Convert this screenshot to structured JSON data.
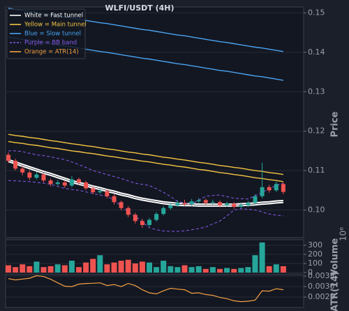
{
  "chart_data": {
    "type": "candlestick",
    "title": "WLFI/USDT (4H)",
    "ylabel": "Price",
    "grid": true,
    "legend": "upper left",
    "up_color": "#26a69a",
    "down_color": "#ef5350",
    "ylim": [
      0.093,
      0.1515
    ],
    "yticks": [
      {
        "value": 0.1,
        "label": "0.10"
      },
      0.11,
      0.12,
      0.13,
      0.14,
      0.15
    ],
    "open": [
      0.114,
      0.1125,
      0.1105,
      0.1095,
      0.1082,
      0.109,
      0.1075,
      0.1066,
      0.107,
      0.1062,
      0.1078,
      0.107,
      0.1055,
      0.1045,
      0.1048,
      0.1035,
      0.102,
      0.1005,
      0.0988,
      0.0972,
      0.0962,
      0.0975,
      0.099,
      0.1005,
      0.1012,
      0.1018,
      0.1015,
      0.1022,
      0.1025,
      0.1018,
      0.102,
      0.1012,
      0.1016,
      0.1008,
      0.1012,
      0.1018,
      0.1035,
      0.1058,
      0.105,
      0.1066
    ],
    "high": [
      0.1146,
      0.113,
      0.1112,
      0.11,
      0.1097,
      0.1094,
      0.108,
      0.1076,
      0.1074,
      0.1086,
      0.1082,
      0.1074,
      0.106,
      0.1054,
      0.1052,
      0.104,
      0.1024,
      0.101,
      0.0993,
      0.0978,
      0.098,
      0.0995,
      0.101,
      0.1018,
      0.1024,
      0.1026,
      0.1028,
      0.103,
      0.1029,
      0.1026,
      0.1024,
      0.1021,
      0.102,
      0.1017,
      0.1023,
      0.104,
      0.112,
      0.1064,
      0.1072,
      0.107
    ],
    "low": [
      0.1119,
      0.11,
      0.1088,
      0.1076,
      0.1078,
      0.107,
      0.106,
      0.1062,
      0.1056,
      0.1058,
      0.1064,
      0.105,
      0.104,
      0.1041,
      0.103,
      0.1014,
      0.0999,
      0.0982,
      0.0966,
      0.0955,
      0.0958,
      0.0971,
      0.0986,
      0.1001,
      0.1008,
      0.101,
      0.1011,
      0.1017,
      0.1013,
      0.1014,
      0.1007,
      0.1008,
      0.1003,
      0.1004,
      0.1008,
      0.1014,
      0.103,
      0.1044,
      0.1046,
      0.104
    ],
    "close": [
      0.1125,
      0.1105,
      0.1095,
      0.1082,
      0.109,
      0.1075,
      0.1066,
      0.107,
      0.1062,
      0.1078,
      0.107,
      0.1055,
      0.1045,
      0.1048,
      0.1035,
      0.102,
      0.1005,
      0.0988,
      0.0972,
      0.0962,
      0.0975,
      0.099,
      0.1005,
      0.1012,
      0.1018,
      0.1015,
      0.1022,
      0.1025,
      0.1018,
      0.102,
      0.1012,
      0.1016,
      0.1008,
      0.1012,
      0.1018,
      0.1035,
      0.1058,
      0.105,
      0.1066,
      0.1046
    ],
    "overlays": [
      {
        "name": "White = Fast tunnel",
        "color": "#ffffff",
        "width": 2,
        "dash": false,
        "lines": [
          [
            0.1128,
            0.1122,
            0.1116,
            0.111,
            0.1104,
            0.1098,
            0.1093,
            0.1087,
            0.1081,
            0.1075,
            0.107,
            0.1066,
            0.1061,
            0.1057,
            0.1052,
            0.1048,
            0.1043,
            0.1039,
            0.1034,
            0.103,
            0.1027,
            0.1024,
            0.1021,
            0.1019,
            0.1017,
            0.1016,
            0.1016,
            0.1015,
            0.1015,
            0.1015,
            0.1015,
            0.1015,
            0.1015,
            0.1016,
            0.1017,
            0.1018,
            0.102,
            0.1021,
            0.1023,
            0.1024
          ],
          [
            0.1123,
            0.1117,
            0.1111,
            0.1105,
            0.1099,
            0.1093,
            0.1088,
            0.1082,
            0.1076,
            0.107,
            0.1065,
            0.1061,
            0.1056,
            0.1052,
            0.1047,
            0.1043,
            0.1038,
            0.1034,
            0.1029,
            0.1025,
            0.1022,
            0.1019,
            0.1016,
            0.1014,
            0.1012,
            0.1011,
            0.1011,
            0.101,
            0.101,
            0.101,
            0.101,
            0.101,
            0.101,
            0.1011,
            0.1012,
            0.1013,
            0.1015,
            0.1016,
            0.1018,
            0.1019
          ]
        ]
      },
      {
        "name": "Yellow = Main tunnel",
        "color": "#f5c542",
        "width": 1.4,
        "dash": false,
        "lines": [
          [
            0.1192,
            0.1189,
            0.1187,
            0.1184,
            0.1182,
            0.1179,
            0.1176,
            0.1174,
            0.1171,
            0.1168,
            0.1166,
            0.1163,
            0.1161,
            0.1158,
            0.1155,
            0.1153,
            0.115,
            0.1147,
            0.1145,
            0.1142,
            0.114,
            0.1137,
            0.1134,
            0.1132,
            0.1129,
            0.1127,
            0.1124,
            0.1121,
            0.1119,
            0.1116,
            0.1113,
            0.1111,
            0.1108,
            0.1106,
            0.1103,
            0.11,
            0.1098,
            0.1095,
            0.1093,
            0.109
          ],
          [
            0.1174,
            0.1171,
            0.1169,
            0.1166,
            0.1164,
            0.1161,
            0.1158,
            0.1156,
            0.1153,
            0.115,
            0.1148,
            0.1145,
            0.1143,
            0.114,
            0.1137,
            0.1135,
            0.1132,
            0.1129,
            0.1127,
            0.1124,
            0.1122,
            0.1119,
            0.1116,
            0.1114,
            0.1111,
            0.1109,
            0.1106,
            0.1103,
            0.1101,
            0.1098,
            0.1095,
            0.1093,
            0.109,
            0.1088,
            0.1085,
            0.1082,
            0.108,
            0.1077,
            0.1075,
            0.1072
          ]
        ]
      },
      {
        "name": "Blue = Slow tunnel",
        "color": "#4aa3f0",
        "width": 1.4,
        "dash": false,
        "lines": [
          [
            0.1512,
            0.1509,
            0.1506,
            0.1504,
            0.1501,
            0.1498,
            0.1495,
            0.1492,
            0.1489,
            0.1487,
            0.1484,
            0.1481,
            0.1478,
            0.1475,
            0.1473,
            0.147,
            0.1467,
            0.1464,
            0.1461,
            0.1458,
            0.1456,
            0.1453,
            0.145,
            0.1447,
            0.1444,
            0.1442,
            0.1439,
            0.1436,
            0.1433,
            0.143,
            0.1427,
            0.1425,
            0.1422,
            0.1419,
            0.1416,
            0.1413,
            0.1411,
            0.1408,
            0.1405,
            0.1402
          ],
          [
            0.1439,
            0.1436,
            0.1433,
            0.1431,
            0.1428,
            0.1425,
            0.1422,
            0.1419,
            0.1416,
            0.1414,
            0.1411,
            0.1408,
            0.1405,
            0.1402,
            0.14,
            0.1397,
            0.1394,
            0.1391,
            0.1388,
            0.1385,
            0.1383,
            0.138,
            0.1377,
            0.1374,
            0.1371,
            0.1369,
            0.1366,
            0.1363,
            0.136,
            0.1357,
            0.1354,
            0.1352,
            0.1349,
            0.1346,
            0.1343,
            0.134,
            0.1338,
            0.1335,
            0.1332,
            0.1329
          ]
        ]
      },
      {
        "name": "Purple = BB band",
        "color": "#8a5cf0",
        "width": 1,
        "dash": true,
        "lines": [
          [
            0.115,
            0.115,
            0.1148,
            0.1144,
            0.114,
            0.1138,
            0.1135,
            0.1131,
            0.1128,
            0.1122,
            0.1115,
            0.1108,
            0.11,
            0.1095,
            0.109,
            0.1085,
            0.108,
            0.1074,
            0.1068,
            0.1065,
            0.1062,
            0.1054,
            0.1045,
            0.1034,
            0.1022,
            0.1018,
            0.1015,
            0.1025,
            0.1035,
            0.1037,
            0.1038,
            0.1034,
            0.103,
            0.1029,
            0.1028,
            0.1036,
            0.1045,
            0.1054,
            0.1062,
            0.1068
          ],
          [
            0.1075,
            0.1074,
            0.1073,
            0.1072,
            0.107,
            0.1068,
            0.1065,
            0.106,
            0.1055,
            0.1052,
            0.105,
            0.1046,
            0.1042,
            0.1038,
            0.1035,
            0.1025,
            0.101,
            0.0995,
            0.0985,
            0.097,
            0.0955,
            0.095,
            0.0947,
            0.0946,
            0.0946,
            0.0947,
            0.095,
            0.0953,
            0.0957,
            0.0965,
            0.0972,
            0.0985,
            0.1,
            0.1003,
            0.1002,
            0.1,
            0.0995,
            0.099,
            0.0987,
            0.0985
          ]
        ]
      }
    ],
    "volume": {
      "ylabel": "Volume",
      "scale_label": "10⁶",
      "ylim": [
        0,
        360
      ],
      "yticks": [
        0,
        100,
        200,
        300
      ],
      "values": [
        80,
        60,
        90,
        70,
        120,
        60,
        70,
        90,
        80,
        130,
        60,
        110,
        150,
        190,
        90,
        110,
        130,
        140,
        100,
        120,
        110,
        60,
        130,
        70,
        60,
        80,
        60,
        70,
        40,
        60,
        40,
        50,
        40,
        50,
        60,
        190,
        330,
        70,
        90,
        70
      ]
    },
    "atr": {
      "name": "Orange = ATR(14)",
      "ylabel": "ATR(14)",
      "color": "#f5a142",
      "ylim": [
        0.002,
        0.00357
      ],
      "yticks": [
        0.0025,
        {
          "value": 0.003,
          "label": "0.0030"
        },
        0.0035
      ],
      "values": [
        0.00338,
        0.00332,
        0.00336,
        0.0034,
        0.00352,
        0.00348,
        0.00335,
        0.00318,
        0.00302,
        0.003,
        0.00312,
        0.00315,
        0.00316,
        0.00318,
        0.00305,
        0.0031,
        0.003,
        0.00315,
        0.00305,
        0.00285,
        0.0027,
        0.00265,
        0.0028,
        0.00292,
        0.00288,
        0.00285,
        0.00268,
        0.0027,
        0.00262,
        0.00258,
        0.00248,
        0.00242,
        0.00232,
        0.00228,
        0.0023,
        0.00235,
        0.0028,
        0.00278,
        0.0029,
        0.00285
      ]
    }
  }
}
